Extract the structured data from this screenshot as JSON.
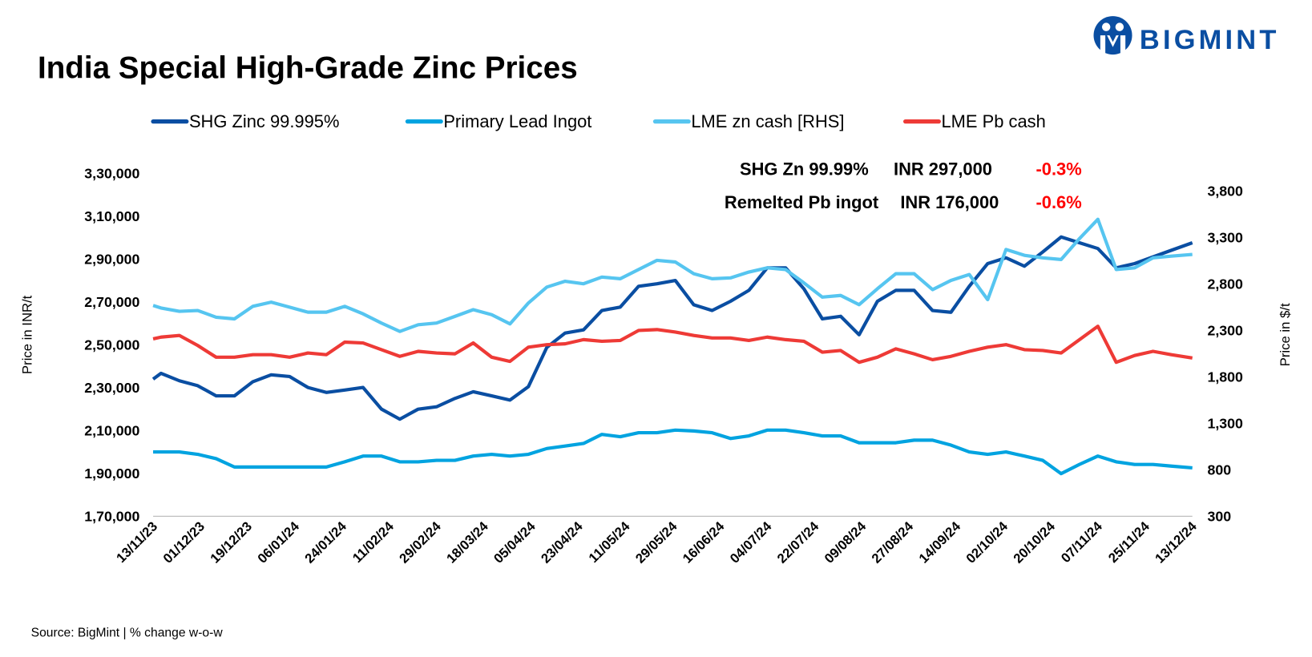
{
  "brand": {
    "name": "BIGMINT",
    "color": "#0a4ea2"
  },
  "chart_data": {
    "type": "line",
    "title": "India Special High-Grade Zinc Prices",
    "source": "Source: BigMint | % change w-o-w",
    "ylabel_left": "Price in INR/t",
    "ylabel_right": "Price in $/t",
    "ylim_left": [
      170000,
      330000
    ],
    "ylim_right": [
      300,
      3987
    ],
    "yticks_left": [
      "1,70,000",
      "1,90,000",
      "2,10,000",
      "2,30,000",
      "2,50,000",
      "2,70,000",
      "2,90,000",
      "3,10,000",
      "3,30,000"
    ],
    "yticks_left_values": [
      170000,
      190000,
      210000,
      230000,
      250000,
      270000,
      290000,
      310000,
      330000
    ],
    "yticks_right": [
      "300",
      "800",
      "1,300",
      "1,800",
      "2,300",
      "2,800",
      "3,300",
      "3,800"
    ],
    "yticks_right_values": [
      300,
      800,
      1300,
      1800,
      2300,
      2800,
      3300,
      3800
    ],
    "xticks": [
      "13/11/23",
      "01/12/23",
      "19/12/23",
      "06/01/24",
      "24/01/24",
      "11/02/24",
      "29/02/24",
      "18/03/24",
      "05/04/24",
      "23/04/24",
      "11/05/24",
      "29/05/24",
      "16/06/24",
      "04/07/24",
      "22/07/24",
      "09/08/24",
      "27/08/24",
      "14/09/24",
      "02/10/24",
      "20/10/24",
      "07/11/24",
      "25/11/24",
      "13/12/24"
    ],
    "xlim": [
      "13/11/23",
      "13/12/24"
    ],
    "grid": false,
    "legend_placement": "top",
    "x": [
      "13/11/23",
      "16/11/23",
      "23/11/23",
      "30/11/23",
      "07/12/23",
      "14/12/23",
      "21/12/23",
      "28/12/23",
      "04/01/24",
      "11/01/24",
      "18/01/24",
      "25/01/24",
      "01/02/24",
      "08/02/24",
      "15/02/24",
      "22/02/24",
      "29/02/24",
      "07/03/24",
      "14/03/24",
      "21/03/24",
      "28/03/24",
      "04/04/24",
      "11/04/24",
      "18/04/24",
      "25/04/24",
      "02/05/24",
      "09/05/24",
      "16/05/24",
      "23/05/24",
      "30/05/24",
      "06/06/24",
      "13/06/24",
      "20/06/24",
      "27/06/24",
      "04/07/24",
      "11/07/24",
      "18/07/24",
      "25/07/24",
      "01/08/24",
      "08/08/24",
      "15/08/24",
      "22/08/24",
      "29/08/24",
      "05/09/24",
      "12/09/24",
      "19/09/24",
      "26/09/24",
      "03/10/24",
      "10/10/24",
      "17/10/24",
      "24/10/24",
      "31/10/24",
      "07/11/24",
      "14/11/24",
      "21/11/24",
      "28/11/24",
      "05/12/24",
      "13/12/24"
    ],
    "series": [
      {
        "name": "SHG Zinc 99.995%",
        "axis": "left",
        "color": "#0a4ea2",
        "values": [
          234000,
          236700,
          233200,
          230900,
          226200,
          226200,
          232800,
          236000,
          235200,
          230100,
          227800,
          228900,
          230100,
          220000,
          215300,
          220000,
          221100,
          225000,
          228100,
          226200,
          224200,
          230500,
          248800,
          255500,
          257000,
          266000,
          267600,
          277300,
          278500,
          280000,
          268700,
          266000,
          270300,
          275400,
          285900,
          285900,
          276100,
          262100,
          263300,
          254700,
          270300,
          275400,
          275400,
          266000,
          265200,
          277300,
          287900,
          290600,
          286700,
          293300,
          300300,
          297600,
          294900,
          285900,
          287900,
          291000,
          294100,
          297600
        ]
      },
      {
        "name": "Primary Lead Ingot",
        "axis": "left",
        "color": "#00a3e0",
        "values": [
          200000,
          200000,
          200000,
          198900,
          196900,
          193000,
          193000,
          193000,
          193000,
          193000,
          193000,
          195400,
          198100,
          198100,
          195400,
          195400,
          196100,
          196100,
          198100,
          198900,
          198100,
          198900,
          201600,
          202800,
          204000,
          208200,
          207100,
          209000,
          209000,
          210200,
          209800,
          209000,
          206300,
          207500,
          210200,
          210200,
          209000,
          207500,
          207500,
          204300,
          204300,
          204300,
          205500,
          205500,
          203200,
          200000,
          198900,
          200000,
          198100,
          196100,
          189900,
          194200,
          198100,
          195400,
          194200,
          194200,
          193400,
          192600
        ]
      },
      {
        "name": "LME zn cash [RHS]",
        "axis": "right",
        "color": "#56c5f0",
        "values": [
          2566,
          2539,
          2503,
          2512,
          2440,
          2422,
          2557,
          2602,
          2548,
          2494,
          2494,
          2557,
          2476,
          2377,
          2287,
          2359,
          2377,
          2449,
          2521,
          2467,
          2368,
          2593,
          2764,
          2827,
          2800,
          2872,
          2854,
          2953,
          3052,
          3034,
          2908,
          2854,
          2863,
          2926,
          2971,
          2953,
          2809,
          2656,
          2674,
          2575,
          2746,
          2908,
          2908,
          2737,
          2836,
          2899,
          2629,
          3169,
          3106,
          3079,
          3061,
          3286,
          3493,
          2953,
          2971,
          3079,
          3097,
          3115
        ]
      },
      {
        "name": "LME Pb cash",
        "axis": "right",
        "color": "#ee3a36",
        "values": [
          2207,
          2226,
          2244,
          2136,
          2010,
          2010,
          2037,
          2037,
          2010,
          2055,
          2037,
          2172,
          2163,
          2091,
          2019,
          2073,
          2055,
          2046,
          2163,
          2010,
          1965,
          2118,
          2145,
          2154,
          2199,
          2181,
          2190,
          2298,
          2307,
          2280,
          2244,
          2217,
          2217,
          2190,
          2226,
          2199,
          2181,
          2064,
          2082,
          1956,
          2010,
          2100,
          2046,
          1983,
          2019,
          2073,
          2118,
          2145,
          2091,
          2082,
          2055,
          2199,
          2343,
          1956,
          2028,
          2073,
          2037,
          2001
        ]
      }
    ],
    "annotations": [
      {
        "label": "SHG Zn 99.99%",
        "price": "INR 297,000",
        "change": "-0.3%"
      },
      {
        "label": "Remelted Pb ingot",
        "price": "INR 176,000",
        "change": "-0.6%"
      }
    ],
    "change_color": "#ff0000"
  }
}
